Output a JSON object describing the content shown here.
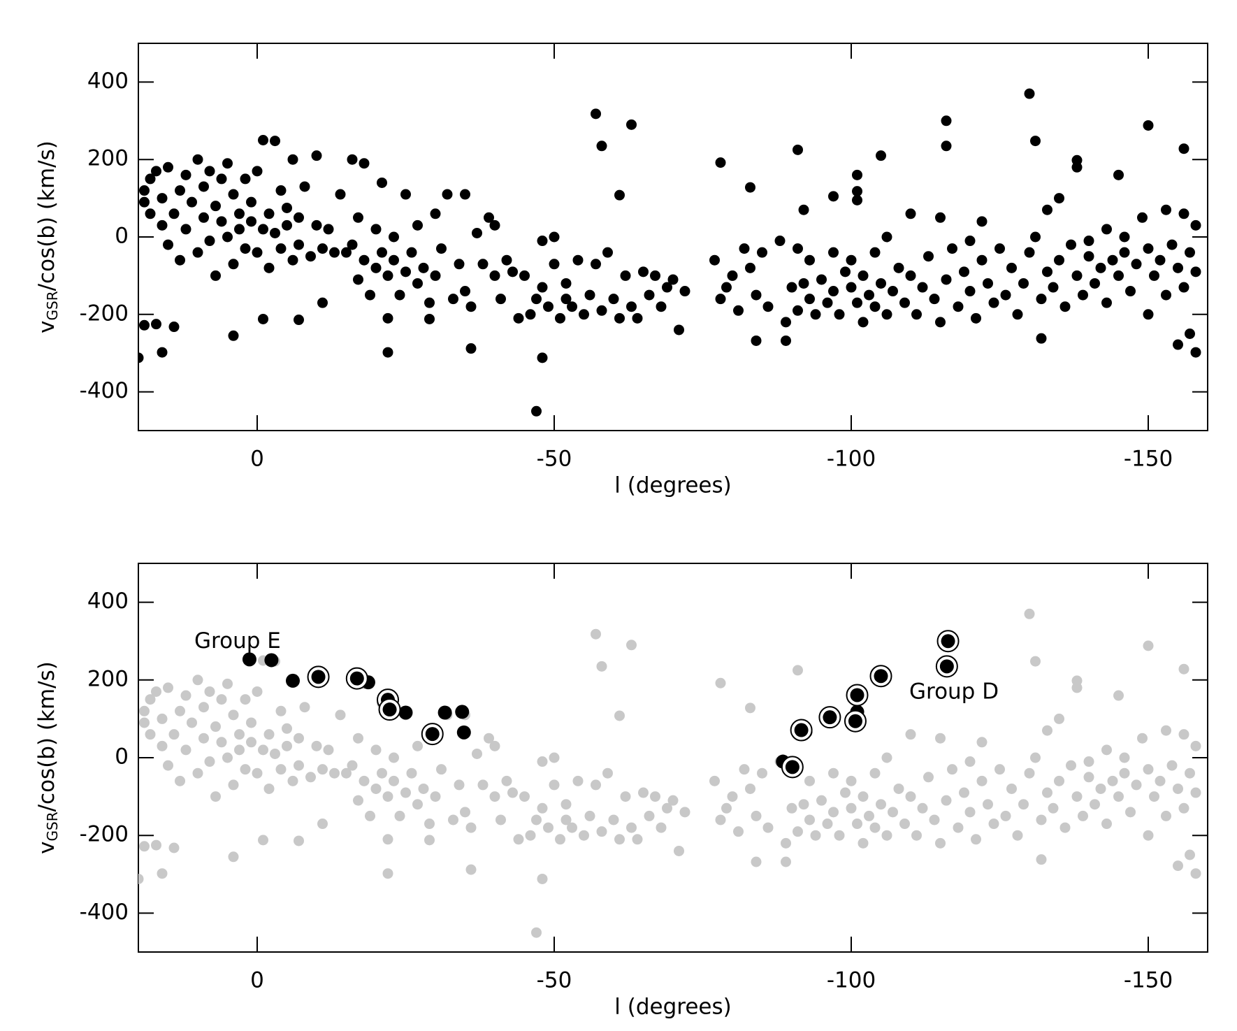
{
  "chart_data": [
    {
      "type": "scatter",
      "xlabel": "l (degrees)",
      "ylabel": [
        "v",
        "GSR",
        "/cos(b)  (km/s)"
      ],
      "xlim": [
        20,
        -160
      ],
      "xticks": [
        0,
        -50,
        -100,
        -150
      ],
      "ylim": [
        -500,
        500
      ],
      "yticks": [
        -400,
        -200,
        0,
        200,
        400
      ],
      "series": [
        {
          "color": "#000000",
          "x": [
            -57,
            -58,
            -63,
            -61,
            -78,
            -83,
            -91,
            -130,
            -131,
            -116,
            -116,
            -150,
            -138,
            -138,
            -145,
            -156,
            -105,
            -101,
            -101,
            -101,
            -97,
            -92,
            -47,
            -48,
            16,
            -22,
            17,
            14,
            19,
            -7,
            -36,
            -84,
            -89,
            -132,
            -155,
            -157,
            -158,
            20,
            4,
            -1,
            -22,
            -29,
            19,
            19,
            18,
            18,
            17,
            16,
            16,
            15,
            15,
            14,
            13,
            13,
            12,
            12,
            11,
            10,
            10,
            9,
            9,
            8,
            8,
            7,
            7,
            6,
            6,
            5,
            5,
            4,
            4,
            3,
            3,
            2,
            2,
            1,
            1,
            0,
            0,
            -1,
            -1,
            -2,
            -2,
            -3,
            -3,
            -4,
            -4,
            -5,
            -5,
            -6,
            -6,
            -7,
            -7,
            -8,
            -9,
            -10,
            -10,
            -11,
            -11,
            -12,
            -13,
            -14,
            -15,
            -16,
            -16,
            -17,
            -17,
            -18,
            -18,
            -19,
            -20,
            -20,
            -21,
            -21,
            -22,
            -23,
            -23,
            -24,
            -25,
            -25,
            -26,
            -27,
            -27,
            -28,
            -29,
            -30,
            -30,
            -31,
            -32,
            -33,
            -34,
            -35,
            -35,
            -36,
            -37,
            -38,
            -39,
            -40,
            -40,
            -41,
            -42,
            -43,
            -44,
            -45,
            -46,
            -47,
            -48,
            -48,
            -49,
            -50,
            -50,
            -51,
            -52,
            -52,
            -53,
            -54,
            -55,
            -56,
            -57,
            -58,
            -59,
            -60,
            -61,
            -62,
            -63,
            -64,
            -65,
            -66,
            -67,
            -68,
            -69,
            -70,
            -71,
            -72,
            -77,
            -78,
            -79,
            -80,
            -81,
            -82,
            -83,
            -84,
            -85,
            -86,
            -88,
            -89,
            -90,
            -91,
            -91,
            -92,
            -93,
            -93,
            -94,
            -95,
            -96,
            -97,
            -97,
            -98,
            -99,
            -100,
            -100,
            -101,
            -102,
            -102,
            -103,
            -104,
            -104,
            -105,
            -106,
            -106,
            -107,
            -108,
            -109,
            -110,
            -110,
            -111,
            -112,
            -113,
            -114,
            -115,
            -115,
            -116,
            -117,
            -118,
            -119,
            -120,
            -120,
            -121,
            -122,
            -122,
            -123,
            -124,
            -125,
            -126,
            -127,
            -128,
            -129,
            -130,
            -131,
            -132,
            -133,
            -133,
            -134,
            -135,
            -135,
            -136,
            -137,
            -138,
            -139,
            -140,
            -140,
            -141,
            -142,
            -143,
            -143,
            -144,
            -145,
            -146,
            -146,
            -147,
            -148,
            -149,
            -150,
            -150,
            -151,
            -152,
            -153,
            -153,
            -154,
            -155,
            -156,
            -156,
            -157,
            -158,
            -158
          ],
          "values": [
            318,
            235,
            290,
            108,
            192,
            128,
            225,
            370,
            248,
            300,
            235,
            288,
            198,
            180,
            160,
            228,
            210,
            160,
            118,
            95,
            105,
            70,
            -450,
            -312,
            -298,
            -298,
            -225,
            -232,
            -228,
            -214,
            -288,
            -268,
            -268,
            -262,
            -278,
            -250,
            -298,
            -312,
            -255,
            -212,
            -210,
            -212,
            120,
            90,
            60,
            150,
            170,
            100,
            30,
            -20,
            180,
            60,
            120,
            -60,
            20,
            160,
            90,
            200,
            -40,
            50,
            130,
            170,
            -10,
            80,
            -100,
            40,
            150,
            190,
            0,
            110,
            -70,
            60,
            20,
            150,
            -30,
            40,
            90,
            170,
            -40,
            250,
            20,
            60,
            -80,
            248,
            10,
            120,
            -30,
            30,
            75,
            200,
            -60,
            -20,
            50,
            130,
            -50,
            210,
            30,
            -30,
            -170,
            20,
            -40,
            110,
            -40,
            200,
            -20,
            -110,
            50,
            190,
            -60,
            -150,
            -80,
            20,
            -40,
            140,
            -100,
            -60,
            0,
            -150,
            110,
            -90,
            -40,
            -120,
            30,
            -80,
            -170,
            60,
            -100,
            -30,
            110,
            -160,
            -70,
            110,
            -140,
            -180,
            10,
            -70,
            50,
            -100,
            30,
            -160,
            -60,
            -90,
            -210,
            -100,
            -200,
            -160,
            -10,
            -130,
            -180,
            0,
            -70,
            -210,
            -120,
            -160,
            -180,
            -60,
            -200,
            -150,
            -70,
            -190,
            -40,
            -160,
            -210,
            -100,
            -180,
            -210,
            -90,
            -150,
            -100,
            -180,
            -130,
            -110,
            -240,
            -140,
            -60,
            -160,
            -130,
            -100,
            -190,
            -30,
            -80,
            -150,
            -40,
            -180,
            -10,
            -220,
            -130,
            -30,
            -190,
            -120,
            -160,
            -60,
            -200,
            -110,
            -170,
            -40,
            -140,
            -200,
            -90,
            -130,
            -60,
            -170,
            -220,
            -100,
            -150,
            -180,
            -40,
            -120,
            -200,
            0,
            -140,
            -80,
            -170,
            -100,
            60,
            -200,
            -130,
            -50,
            -160,
            50,
            -220,
            -110,
            -30,
            -180,
            -90,
            -140,
            -10,
            -210,
            -60,
            40,
            -120,
            -170,
            -30,
            -150,
            -80,
            -200,
            -120,
            -40,
            0,
            -160,
            -90,
            70,
            -130,
            100,
            -60,
            -180,
            -20,
            -100,
            -150,
            -50,
            -10,
            -120,
            -80,
            20,
            -170,
            -60,
            -100,
            0,
            -40,
            -140,
            -70,
            50,
            -30,
            -200,
            -100,
            -60,
            70,
            -150,
            -20,
            -80,
            60,
            -130,
            -40,
            -90,
            30
          ]
        }
      ]
    },
    {
      "type": "scatter",
      "xlabel": "l (degrees)",
      "ylabel": [
        "v",
        "GSR",
        "/cos(b)  (km/s)"
      ],
      "xlim": [
        20,
        -160
      ],
      "xticks": [
        0,
        -50,
        -100,
        -150
      ],
      "ylim": [
        -500,
        500
      ],
      "yticks": [
        -400,
        -200,
        0,
        200,
        400
      ],
      "background_color": "#c8c8c8",
      "series": [
        {
          "color": "#000000",
          "ring": false,
          "x": [
            1.3,
            -2.4,
            -6,
            -18.7,
            -25,
            -31.6,
            -34.5,
            -34.8,
            -88.5,
            -92.3,
            -101
          ],
          "values": [
            253,
            251,
            198,
            194,
            116,
            116,
            118,
            65,
            -10,
            67,
            118
          ]
        },
        {
          "color": "#000000",
          "ring": true,
          "x": [
            -10.3,
            -16.8,
            -22,
            -22.3,
            -29.5,
            -90.1,
            -91.6,
            -96.4,
            -100.7,
            -101,
            -105,
            -116.3,
            -116.1
          ],
          "values": [
            208,
            204,
            149,
            124,
            61,
            -24,
            71,
            104,
            94,
            161,
            210,
            300,
            235
          ]
        }
      ],
      "annotations": [
        {
          "text": "Group E",
          "x": 3.3,
          "y": 298
        },
        {
          "text": "Group D",
          "x": -117.3,
          "y": 167
        }
      ]
    }
  ]
}
